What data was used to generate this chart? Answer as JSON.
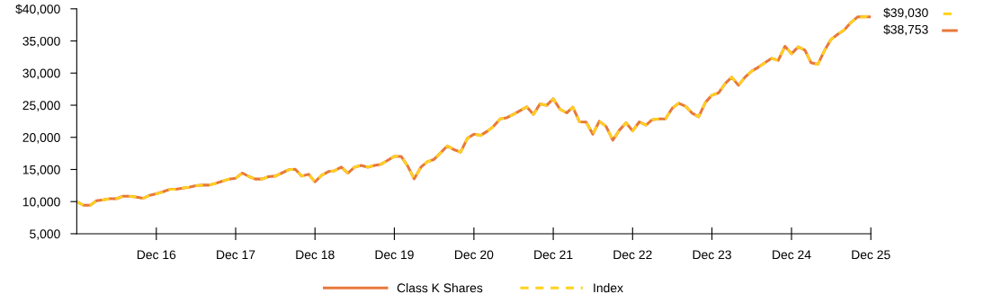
{
  "chart_data": {
    "type": "line",
    "x": [
      "2015-12",
      "2016-01",
      "2016-02",
      "2016-03",
      "2016-04",
      "2016-05",
      "2016-06",
      "2016-07",
      "2016-08",
      "2016-09",
      "2016-10",
      "2016-11",
      "2016-12",
      "2017-01",
      "2017-02",
      "2017-03",
      "2017-04",
      "2017-05",
      "2017-06",
      "2017-07",
      "2017-08",
      "2017-09",
      "2017-10",
      "2017-11",
      "2017-12",
      "2018-01",
      "2018-02",
      "2018-03",
      "2018-04",
      "2018-05",
      "2018-06",
      "2018-07",
      "2018-08",
      "2018-09",
      "2018-10",
      "2018-11",
      "2018-12",
      "2019-01",
      "2019-02",
      "2019-03",
      "2019-04",
      "2019-05",
      "2019-06",
      "2019-07",
      "2019-08",
      "2019-09",
      "2019-10",
      "2019-11",
      "2019-12",
      "2020-01",
      "2020-02",
      "2020-03",
      "2020-04",
      "2020-05",
      "2020-06",
      "2020-07",
      "2020-08",
      "2020-09",
      "2020-10",
      "2020-11",
      "2020-12",
      "2021-01",
      "2021-02",
      "2021-03",
      "2021-04",
      "2021-05",
      "2021-06",
      "2021-07",
      "2021-08",
      "2021-09",
      "2021-10",
      "2021-11",
      "2021-12",
      "2022-01",
      "2022-02",
      "2022-03",
      "2022-04",
      "2022-05",
      "2022-06",
      "2022-07",
      "2022-08",
      "2022-09",
      "2022-10",
      "2022-11",
      "2022-12",
      "2023-01",
      "2023-02",
      "2023-03",
      "2023-04",
      "2023-05",
      "2023-06",
      "2023-07",
      "2023-08",
      "2023-09",
      "2023-10",
      "2023-11",
      "2023-12",
      "2024-01",
      "2024-02",
      "2024-03",
      "2024-04",
      "2024-05",
      "2024-06",
      "2024-07",
      "2024-08",
      "2024-09",
      "2024-10",
      "2024-11",
      "2024-12",
      "2025-01",
      "2025-02",
      "2025-03",
      "2025-04",
      "2025-05",
      "2025-06",
      "2025-07",
      "2025-08",
      "2025-09",
      "2025-10",
      "2025-11",
      "2025-12"
    ],
    "series": [
      {
        "name": "Class K Shares",
        "color": "#e8783c",
        "line_style": "solid",
        "values": [
          10000,
          9440,
          9450,
          10130,
          10270,
          10460,
          10460,
          10830,
          10830,
          10700,
          10510,
          10980,
          11210,
          11530,
          11910,
          11910,
          12100,
          12240,
          12470,
          12570,
          12570,
          12850,
          13180,
          13510,
          13650,
          14440,
          13880,
          13510,
          13510,
          13880,
          13970,
          14440,
          14950,
          15040,
          13970,
          14250,
          13080,
          14110,
          14670,
          14800,
          15360,
          14430,
          15360,
          15640,
          15360,
          15640,
          15820,
          16430,
          17040,
          17040,
          15500,
          13540,
          15360,
          16200,
          16580,
          17600,
          18670,
          18070,
          17700,
          19840,
          20490,
          20300,
          20960,
          21700,
          22870,
          23060,
          23580,
          24140,
          24740,
          23580,
          25200,
          24980,
          26000,
          24370,
          23810,
          24700,
          22410,
          22370,
          20490,
          22500,
          21700,
          19560,
          21100,
          22270,
          21000,
          22410,
          21900,
          22740,
          22870,
          22870,
          24510,
          25300,
          24840,
          23760,
          23200,
          25440,
          26560,
          26930,
          28420,
          29360,
          28100,
          29360,
          30300,
          30900,
          31600,
          32300,
          31980,
          34170,
          33000,
          34080,
          33560,
          31600,
          31360,
          33460,
          35240,
          36030,
          36730,
          37900,
          38740,
          38740,
          38753
        ]
      },
      {
        "name": "Index",
        "color": "#ffd21f",
        "line_style": "dashed",
        "values": [
          10000,
          9440,
          9450,
          10130,
          10270,
          10460,
          10460,
          10830,
          10830,
          10700,
          10510,
          10980,
          11210,
          11530,
          11910,
          11910,
          12100,
          12240,
          12470,
          12570,
          12570,
          12850,
          13180,
          13510,
          13650,
          14440,
          13880,
          13510,
          13510,
          13880,
          13970,
          14440,
          14950,
          15040,
          13970,
          14250,
          13080,
          14110,
          14670,
          14800,
          15360,
          14430,
          15360,
          15640,
          15360,
          15640,
          15820,
          16430,
          17040,
          17040,
          15500,
          13540,
          15360,
          16200,
          16580,
          17600,
          18670,
          18070,
          17700,
          19840,
          20490,
          20300,
          20960,
          21700,
          22870,
          23060,
          23580,
          24140,
          24740,
          23580,
          25200,
          24980,
          26000,
          24370,
          23810,
          24700,
          22410,
          22370,
          20490,
          22500,
          21700,
          19560,
          21100,
          22270,
          21000,
          22410,
          21900,
          22740,
          22870,
          22870,
          24510,
          25300,
          24840,
          23760,
          23200,
          25440,
          26560,
          26930,
          28420,
          29360,
          28100,
          29360,
          30300,
          30900,
          31600,
          32300,
          31980,
          34170,
          33000,
          34080,
          33560,
          31600,
          31360,
          33460,
          35240,
          36030,
          36730,
          37900,
          38740,
          38740,
          39030
        ]
      }
    ],
    "annotations": [
      {
        "text": "$39,030",
        "x": "2025-12",
        "y": 39030
      },
      {
        "text": "$38,753",
        "x": "2025-12",
        "y": 38753
      }
    ],
    "xlim": [
      "2015-12",
      "2025-12"
    ],
    "xticks": [
      {
        "value": "2016-12",
        "label": "Dec 16"
      },
      {
        "value": "2017-12",
        "label": "Dec 17"
      },
      {
        "value": "2018-12",
        "label": "Dec 18"
      },
      {
        "value": "2019-12",
        "label": "Dec 19"
      },
      {
        "value": "2020-12",
        "label": "Dec 20"
      },
      {
        "value": "2021-12",
        "label": "Dec 21"
      },
      {
        "value": "2022-12",
        "label": "Dec 22"
      },
      {
        "value": "2023-12",
        "label": "Dec 23"
      },
      {
        "value": "2024-12",
        "label": "Dec 24"
      },
      {
        "value": "2025-12",
        "label": "Dec 25"
      }
    ],
    "ylim": [
      5000,
      40000
    ],
    "yticks": [
      {
        "value": 5000,
        "label": "5,000"
      },
      {
        "value": 10000,
        "label": "10,000"
      },
      {
        "value": 15000,
        "label": "15,000"
      },
      {
        "value": 20000,
        "label": "20,000"
      },
      {
        "value": 25000,
        "label": "25,000"
      },
      {
        "value": 30000,
        "label": "30,000"
      },
      {
        "value": 35000,
        "label": "35,000"
      },
      {
        "value": 40000,
        "label": "$40,000"
      }
    ],
    "grid": false,
    "legend": "bottom",
    "marker": "none"
  }
}
